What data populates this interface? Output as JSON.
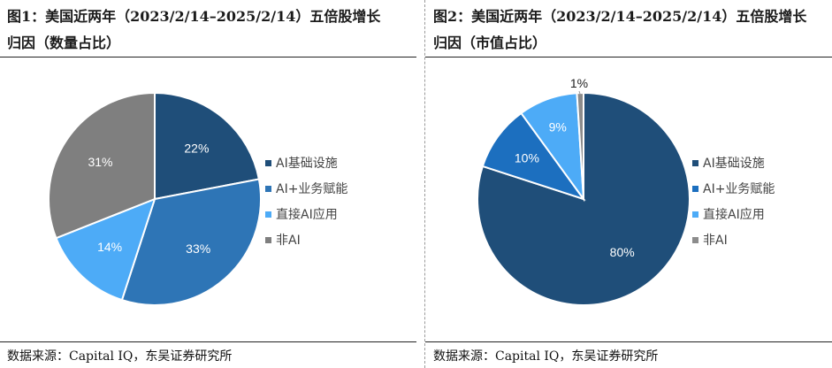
{
  "chart_data": [
    {
      "type": "pie",
      "title_line1": "图1：美国近两年（2023/2/14–2025/2/14）五倍股增长",
      "title_line2": "归因（数量占比）",
      "categories": [
        "AI基础设施",
        "AI+业务赋能",
        "直接AI应用",
        "非AI"
      ],
      "values": [
        22,
        33,
        14,
        31
      ],
      "value_labels": [
        "22%",
        "33%",
        "14%",
        "31%"
      ],
      "colors": [
        "#1f4e79",
        "#2e75b6",
        "#4dabf7",
        "#7f7f7f"
      ],
      "legend_position": "right",
      "source": "数据来源：Capital IQ，东吴证券研究所"
    },
    {
      "type": "pie",
      "title_line1": "图2：美国近两年（2023/2/14–2025/2/14）五倍股增长",
      "title_line2": "归因（市值占比）",
      "categories": [
        "AI基础设施",
        "AI+业务赋能",
        "直接AI应用",
        "非AI"
      ],
      "values": [
        80,
        10,
        9,
        1
      ],
      "value_labels": [
        "80%",
        "10%",
        "9%",
        "1%"
      ],
      "colors": [
        "#1f4e79",
        "#1c6fbf",
        "#4dabf7",
        "#8c8c8c"
      ],
      "legend_position": "right",
      "source": "数据来源：Capital IQ，东吴证券研究所"
    }
  ]
}
